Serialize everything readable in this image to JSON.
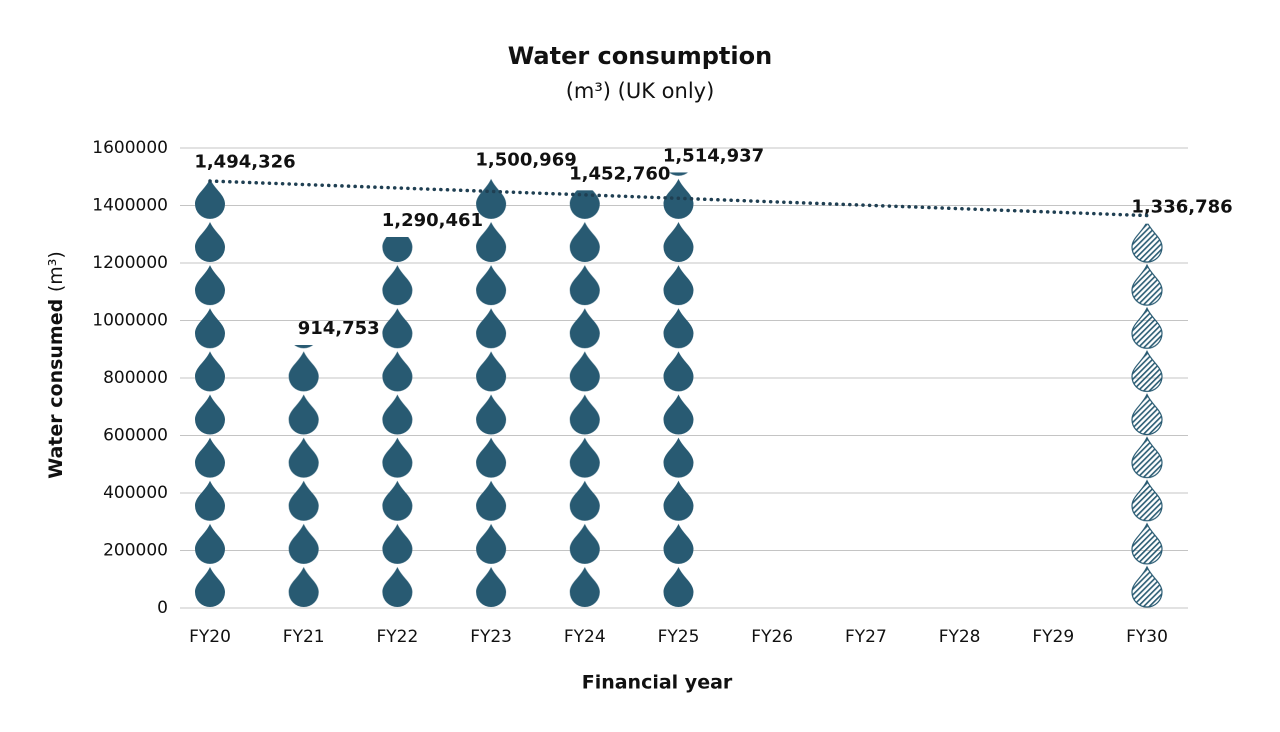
{
  "chart_data": {
    "type": "pictogram",
    "title": "Water consumption",
    "subtitle": "(m³) (UK only)",
    "y_label": "Water consumed",
    "y_label_unit": "(m³)",
    "x_label": "Financial year",
    "categories": [
      "FY20",
      "FY21",
      "FY22",
      "FY23",
      "FY24",
      "FY25",
      "FY26",
      "FY27",
      "FY28",
      "FY29",
      "FY30"
    ],
    "values": [
      1494326,
      914753,
      1290461,
      1500969,
      1452760,
      1514937,
      null,
      null,
      null,
      null,
      1336786
    ],
    "value_labels": [
      "1,494,326",
      "914,753",
      "1,290,461",
      "1,500,969",
      "1,452,760",
      "1,514,937",
      null,
      null,
      null,
      null,
      "1,336,786"
    ],
    "fill": [
      "solid",
      "solid",
      "solid",
      "solid",
      "solid",
      "solid",
      null,
      null,
      null,
      null,
      "hatched"
    ],
    "color": "#285a72",
    "icon_unit": 150000,
    "trend": {
      "categories": [
        "FY20",
        "FY30"
      ],
      "values": [
        1485000,
        1365000
      ],
      "color": "#1f3f52",
      "style": "dotted"
    },
    "ylim": [
      0,
      1600000
    ],
    "yticks": [
      0,
      200000,
      400000,
      600000,
      800000,
      1000000,
      1200000,
      1400000,
      1600000
    ],
    "grid": true
  }
}
